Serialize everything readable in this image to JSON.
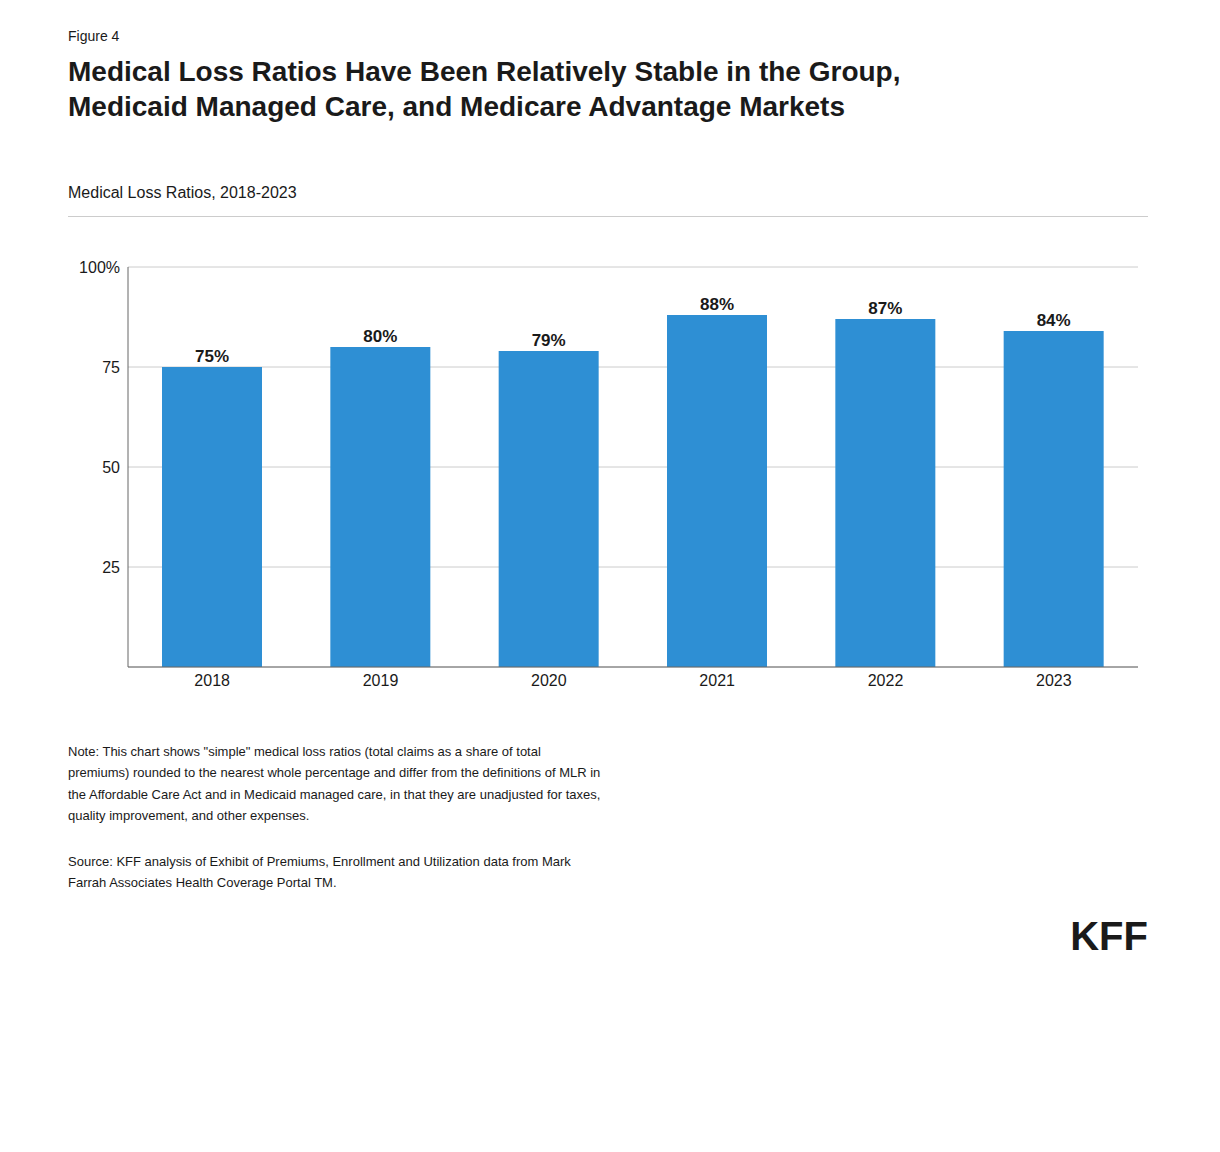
{
  "chart_data": {
    "type": "bar",
    "title": "Medical Loss Ratios Have Been Relatively Stable in the Group,\nMedicaid Managed Care, and Medicare Advantage Markets",
    "subtitle": "Medical Loss Ratios, 2018-2023",
    "categories": [
      "2018",
      "2019",
      "2020",
      "2021",
      "2022",
      "2023"
    ],
    "values": [
      75,
      80,
      79,
      88,
      87,
      84
    ],
    "value_labels": [
      "75%",
      "80%",
      "79%",
      "88%",
      "87%",
      "84%"
    ],
    "data_labels": true,
    "color": "#2E8FD4",
    "ylim": [
      0,
      100
    ],
    "yticks": [
      25,
      50,
      75,
      {
        "value": 100,
        "label": "100%"
      }
    ],
    "grid": true,
    "annotations": [
      "Figure 4",
      "Note: This chart shows \"simple\" medical loss ratios (total claims as a share of total\npremiums) rounded to the nearest whole percentage and differ from the definitions of MLR in\nthe Affordable Care Act and in Medicaid managed care, in that they are unadjusted for taxes,\nquality improvement, and other expenses.",
      "Source: KFF analysis of Exhibit of Premiums, Enrollment and Utilization data from Mark\nFarrah Associates Health Coverage Portal TM.",
      "KFF"
    ]
  }
}
